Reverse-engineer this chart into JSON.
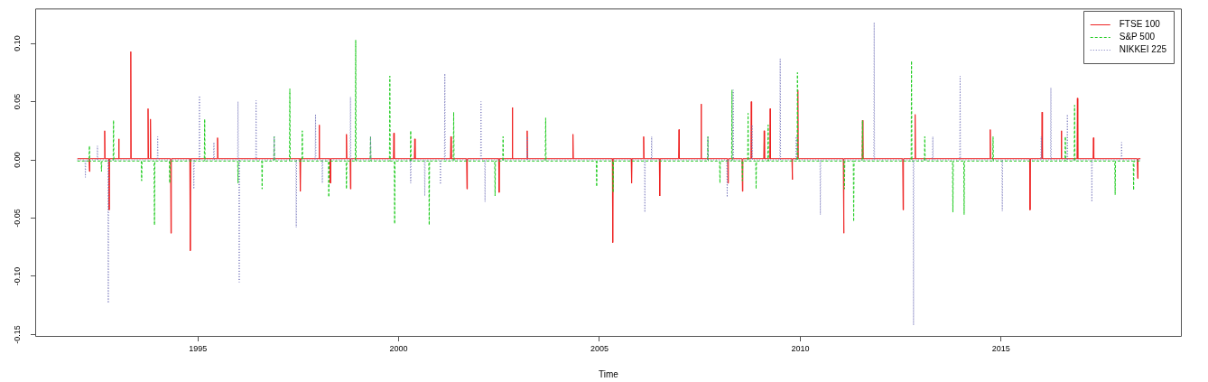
{
  "chart_data": {
    "type": "line",
    "xlabel": "Time",
    "legend": "top right",
    "xlim": [
      1990.95,
      2019.5
    ],
    "xticks": [
      1995,
      2000,
      2005,
      2010,
      2015
    ],
    "ylim": [
      -0.152,
      0.13
    ],
    "yticks": [
      {
        "value": -0.15,
        "label": "-0.15"
      },
      {
        "value": -0.1,
        "label": "-0.10"
      },
      {
        "value": -0.05,
        "label": "-0.05"
      },
      {
        "value": 0,
        "label": "0.00"
      },
      {
        "value": 0.05,
        "label": "0.05"
      },
      {
        "value": 0.1,
        "label": "0.10"
      }
    ],
    "series": [
      {
        "name": "FTSE 100",
        "color": "#ee2222",
        "line_style": "solid",
        "x": [
          1992.0,
          1992.29,
          1992.3,
          1992.31,
          1992.67,
          1992.68,
          1992.69,
          1992.78,
          1992.79,
          1992.8,
          1993.02,
          1993.03,
          1993.04,
          1993.32,
          1993.33,
          1993.34,
          1993.75,
          1993.76,
          1993.77,
          1993.81,
          1993.82,
          1993.83,
          1994.32,
          1994.33,
          1994.34,
          1994.8,
          1994.81,
          1994.82,
          1995.48,
          1995.49,
          1995.5,
          1997.54,
          1997.55,
          1997.56,
          1998.01,
          1998.02,
          1998.03,
          1998.29,
          1998.3,
          1998.31,
          1998.69,
          1998.7,
          1998.71,
          1998.79,
          1998.8,
          1998.81,
          1999.87,
          1999.88,
          1999.89,
          2000.39,
          2000.4,
          2000.41,
          2001.29,
          2001.3,
          2001.31,
          2001.69,
          2001.7,
          2001.71,
          2002.49,
          2002.5,
          2002.51,
          2002.82,
          2002.83,
          2002.84,
          2003.19,
          2003.2,
          2003.21,
          2004.33,
          2004.34,
          2004.35,
          2005.32,
          2005.33,
          2005.34,
          2005.79,
          2005.8,
          2005.81,
          2006.09,
          2006.1,
          2006.11,
          2006.49,
          2006.5,
          2006.51,
          2006.97,
          2006.98,
          2006.99,
          2007.52,
          2007.53,
          2007.54,
          2008.19,
          2008.2,
          2008.21,
          2008.55,
          2008.56,
          2008.57,
          2008.77,
          2008.78,
          2008.79,
          2009.09,
          2009.1,
          2009.11,
          2009.24,
          2009.25,
          2009.26,
          2009.79,
          2009.8,
          2009.81,
          2009.93,
          2009.94,
          2009.95,
          2011.07,
          2011.08,
          2011.09,
          2011.54,
          2011.55,
          2011.56,
          2012.55,
          2012.56,
          2012.57,
          2012.85,
          2012.86,
          2012.87,
          2014.72,
          2014.73,
          2014.74,
          2015.71,
          2015.72,
          2015.73,
          2016.01,
          2016.02,
          2016.03,
          2016.49,
          2016.5,
          2016.51,
          2016.89,
          2016.9,
          2016.91,
          2017.29,
          2017.3,
          2017.31,
          2018.39,
          2018.4,
          2018.41,
          2018.47
        ],
        "values": [
          0.001,
          0.001,
          -0.01,
          0.001,
          0.001,
          0.025,
          0.001,
          0.001,
          -0.043,
          0.001,
          0.001,
          0.018,
          0.001,
          0.001,
          0.093,
          0.001,
          0.001,
          0.044,
          0.001,
          0.001,
          0.035,
          0.001,
          0.001,
          -0.063,
          0.001,
          0.001,
          -0.078,
          0.001,
          0.001,
          0.019,
          0.001,
          0.001,
          -0.027,
          0.001,
          0.001,
          0.03,
          0.001,
          0.001,
          -0.02,
          0.001,
          0.001,
          0.022,
          0.001,
          0.001,
          -0.025,
          0.001,
          0.001,
          0.023,
          0.001,
          0.001,
          0.018,
          0.001,
          0.001,
          0.02,
          0.001,
          0.001,
          -0.025,
          0.001,
          0.001,
          -0.028,
          0.001,
          0.001,
          0.045,
          0.001,
          0.001,
          0.025,
          0.001,
          0.001,
          0.022,
          0.001,
          0.001,
          -0.071,
          0.001,
          0.001,
          -0.02,
          0.001,
          0.001,
          0.02,
          0.001,
          0.001,
          -0.031,
          0.001,
          0.001,
          0.026,
          0.001,
          0.001,
          0.048,
          0.001,
          0.001,
          -0.02,
          0.001,
          0.001,
          -0.027,
          0.001,
          0.001,
          0.05,
          0.001,
          0.001,
          0.025,
          0.001,
          0.001,
          0.044,
          0.001,
          0.001,
          -0.017,
          0.001,
          0.001,
          0.06,
          0.001,
          0.001,
          -0.063,
          0.001,
          0.001,
          0.034,
          0.001,
          0.001,
          -0.043,
          0.001,
          0.001,
          0.039,
          0.001,
          0.001,
          0.026,
          0.001,
          0.001,
          -0.043,
          0.001,
          0.001,
          0.041,
          0.001,
          0.001,
          0.025,
          0.001,
          0.001,
          0.053,
          0.001,
          0.001,
          0.019,
          0.001,
          0.001,
          -0.016,
          0.001,
          0.001
        ]
      },
      {
        "name": "S&P 500",
        "color": "#22cc22",
        "line_style": "dashed",
        "x": [
          1992.0,
          1992.29,
          1992.3,
          1992.31,
          1992.59,
          1992.6,
          1992.61,
          1992.89,
          1992.9,
          1992.91,
          1993.59,
          1993.6,
          1993.61,
          1993.91,
          1993.92,
          1993.93,
          1994.29,
          1994.3,
          1994.31,
          1995.16,
          1995.17,
          1995.18,
          1995.99,
          1996.0,
          1996.01,
          1996.59,
          1996.6,
          1996.61,
          1996.89,
          1996.9,
          1996.91,
          1997.28,
          1997.29,
          1997.3,
          1997.59,
          1997.6,
          1997.61,
          1998.25,
          1998.26,
          1998.27,
          1998.69,
          1998.7,
          1998.71,
          1998.92,
          1998.93,
          1998.94,
          1999.29,
          1999.3,
          1999.31,
          1999.77,
          1999.78,
          1999.79,
          1999.89,
          1999.9,
          1999.91,
          2000.29,
          2000.3,
          2000.31,
          2000.75,
          2000.76,
          2000.77,
          2001.36,
          2001.37,
          2001.38,
          2002.39,
          2002.4,
          2002.41,
          2002.59,
          2002.6,
          2002.61,
          2003.65,
          2003.66,
          2003.67,
          2004.92,
          2004.93,
          2004.94,
          2005.33,
          2005.34,
          2005.35,
          2007.69,
          2007.7,
          2007.71,
          2007.99,
          2008.0,
          2008.01,
          2008.29,
          2008.3,
          2008.31,
          2008.55,
          2008.56,
          2008.57,
          2008.69,
          2008.7,
          2008.71,
          2008.89,
          2008.9,
          2008.91,
          2009.19,
          2009.2,
          2009.21,
          2009.92,
          2009.93,
          2009.94,
          2011.09,
          2011.1,
          2011.11,
          2011.32,
          2011.33,
          2011.34,
          2011.54,
          2011.55,
          2011.56,
          2012.76,
          2012.77,
          2012.78,
          2013.09,
          2013.1,
          2013.11,
          2013.79,
          2013.8,
          2013.81,
          2014.07,
          2014.08,
          2014.09,
          2014.79,
          2014.8,
          2014.81,
          2016.59,
          2016.6,
          2016.61,
          2016.82,
          2016.83,
          2016.84,
          2017.83,
          2017.84,
          2017.85,
          2018.29,
          2018.3,
          2018.31,
          2018.47
        ],
        "values": [
          -0.001,
          -0.001,
          0.012,
          -0.001,
          -0.001,
          -0.01,
          -0.001,
          -0.001,
          0.034,
          -0.001,
          -0.001,
          -0.018,
          -0.001,
          -0.001,
          -0.056,
          -0.001,
          -0.001,
          -0.02,
          -0.001,
          -0.001,
          0.035,
          -0.001,
          -0.001,
          -0.02,
          -0.001,
          -0.001,
          -0.025,
          -0.001,
          -0.001,
          0.02,
          -0.001,
          -0.001,
          0.061,
          -0.001,
          -0.001,
          0.025,
          -0.001,
          -0.001,
          -0.032,
          -0.001,
          -0.001,
          -0.025,
          -0.001,
          -0.001,
          0.103,
          -0.001,
          -0.001,
          0.02,
          -0.001,
          -0.001,
          0.072,
          -0.001,
          -0.001,
          -0.055,
          -0.001,
          -0.001,
          0.025,
          -0.001,
          -0.001,
          -0.056,
          -0.001,
          -0.001,
          0.041,
          -0.001,
          -0.001,
          -0.031,
          -0.001,
          -0.001,
          0.02,
          -0.001,
          -0.001,
          0.036,
          -0.001,
          -0.001,
          -0.023,
          -0.001,
          -0.001,
          -0.028,
          -0.001,
          -0.001,
          0.02,
          -0.001,
          -0.001,
          -0.02,
          -0.001,
          -0.001,
          0.06,
          -0.001,
          -0.001,
          -0.018,
          -0.001,
          -0.001,
          0.04,
          -0.001,
          -0.001,
          -0.025,
          -0.001,
          -0.001,
          0.03,
          -0.001,
          -0.001,
          0.075,
          -0.001,
          -0.001,
          -0.025,
          -0.001,
          -0.001,
          -0.053,
          -0.001,
          -0.001,
          0.034,
          -0.001,
          -0.001,
          0.085,
          -0.001,
          -0.001,
          0.02,
          -0.001,
          -0.001,
          -0.045,
          -0.001,
          -0.001,
          -0.047,
          -0.001,
          -0.001,
          0.02,
          -0.001,
          -0.001,
          0.02,
          -0.001,
          -0.001,
          0.047,
          -0.001,
          -0.001,
          -0.03,
          -0.001,
          -0.001,
          -0.026,
          -0.001,
          -0.001
        ]
      },
      {
        "name": "NIKKEI 225",
        "color": "#7777bb",
        "line_style": "dotted",
        "x": [
          1992.0,
          1992.19,
          1992.2,
          1992.21,
          1992.49,
          1992.5,
          1992.51,
          1992.76,
          1992.77,
          1992.78,
          1993.99,
          1994.0,
          1994.01,
          1994.89,
          1994.9,
          1994.91,
          1995.03,
          1995.04,
          1995.05,
          1995.39,
          1995.4,
          1995.41,
          1995.99,
          1996.0,
          1996.01,
          1996.02,
          1996.03,
          1996.04,
          1996.44,
          1996.45,
          1996.46,
          1996.89,
          1996.9,
          1996.91,
          1997.44,
          1997.45,
          1997.46,
          1997.92,
          1997.93,
          1997.94,
          1998.09,
          1998.1,
          1998.11,
          1998.79,
          1998.8,
          1998.81,
          1999.29,
          1999.3,
          1999.31,
          2000.29,
          2000.3,
          2000.31,
          2000.64,
          2000.65,
          2000.66,
          2001.03,
          2001.04,
          2001.05,
          2001.14,
          2001.15,
          2001.16,
          2002.04,
          2002.05,
          2002.06,
          2002.14,
          2002.15,
          2002.16,
          2003.19,
          2003.2,
          2003.21,
          2006.12,
          2006.13,
          2006.14,
          2006.29,
          2006.3,
          2006.31,
          2007.69,
          2007.7,
          2007.71,
          2008.17,
          2008.18,
          2008.19,
          2008.32,
          2008.33,
          2008.34,
          2008.79,
          2008.8,
          2008.81,
          2009.49,
          2009.5,
          2009.51,
          2009.89,
          2009.9,
          2009.91,
          2010.49,
          2010.5,
          2010.51,
          2011.83,
          2011.84,
          2011.85,
          2012.81,
          2012.82,
          2012.83,
          2013.29,
          2013.3,
          2013.31,
          2013.97,
          2013.98,
          2013.99,
          2015.02,
          2015.03,
          2015.04,
          2015.99,
          2016.0,
          2016.01,
          2016.23,
          2016.24,
          2016.25,
          2016.64,
          2016.65,
          2016.66,
          2017.25,
          2017.26,
          2017.27,
          2017.99,
          2018.0,
          2018.01,
          2018.47
        ],
        "values": [
          0,
          0,
          -0.015,
          0,
          0,
          0.012,
          0,
          0,
          -0.123,
          0,
          0,
          0.02,
          0,
          0,
          -0.025,
          0,
          0,
          0.055,
          0,
          0,
          0.015,
          0,
          0,
          0.05,
          0,
          0,
          -0.105,
          0,
          0,
          0.051,
          0,
          0,
          0.02,
          0,
          0,
          -0.058,
          0,
          0,
          0.039,
          0,
          0,
          -0.02,
          0,
          0,
          0.054,
          0,
          0,
          0.02,
          0,
          0,
          -0.02,
          0,
          0,
          -0.031,
          0,
          0,
          -0.021,
          0,
          0,
          0.074,
          0,
          0,
          0.05,
          0,
          0,
          -0.036,
          0,
          0,
          0.02,
          0,
          0,
          -0.045,
          0,
          0,
          0.02,
          0,
          0,
          0.02,
          0,
          0,
          -0.032,
          0,
          0,
          0.06,
          0,
          0,
          0.03,
          0,
          0,
          0.087,
          0,
          0,
          0.02,
          0,
          0,
          -0.047,
          0,
          0,
          0.118,
          0,
          0,
          -0.142,
          0,
          0,
          0.02,
          0,
          0,
          0.072,
          0,
          0,
          -0.044,
          0,
          0,
          0.02,
          0,
          0,
          0.062,
          0,
          0,
          0.039,
          0,
          0,
          -0.036,
          0,
          0,
          0.015,
          0,
          0
        ]
      }
    ]
  }
}
